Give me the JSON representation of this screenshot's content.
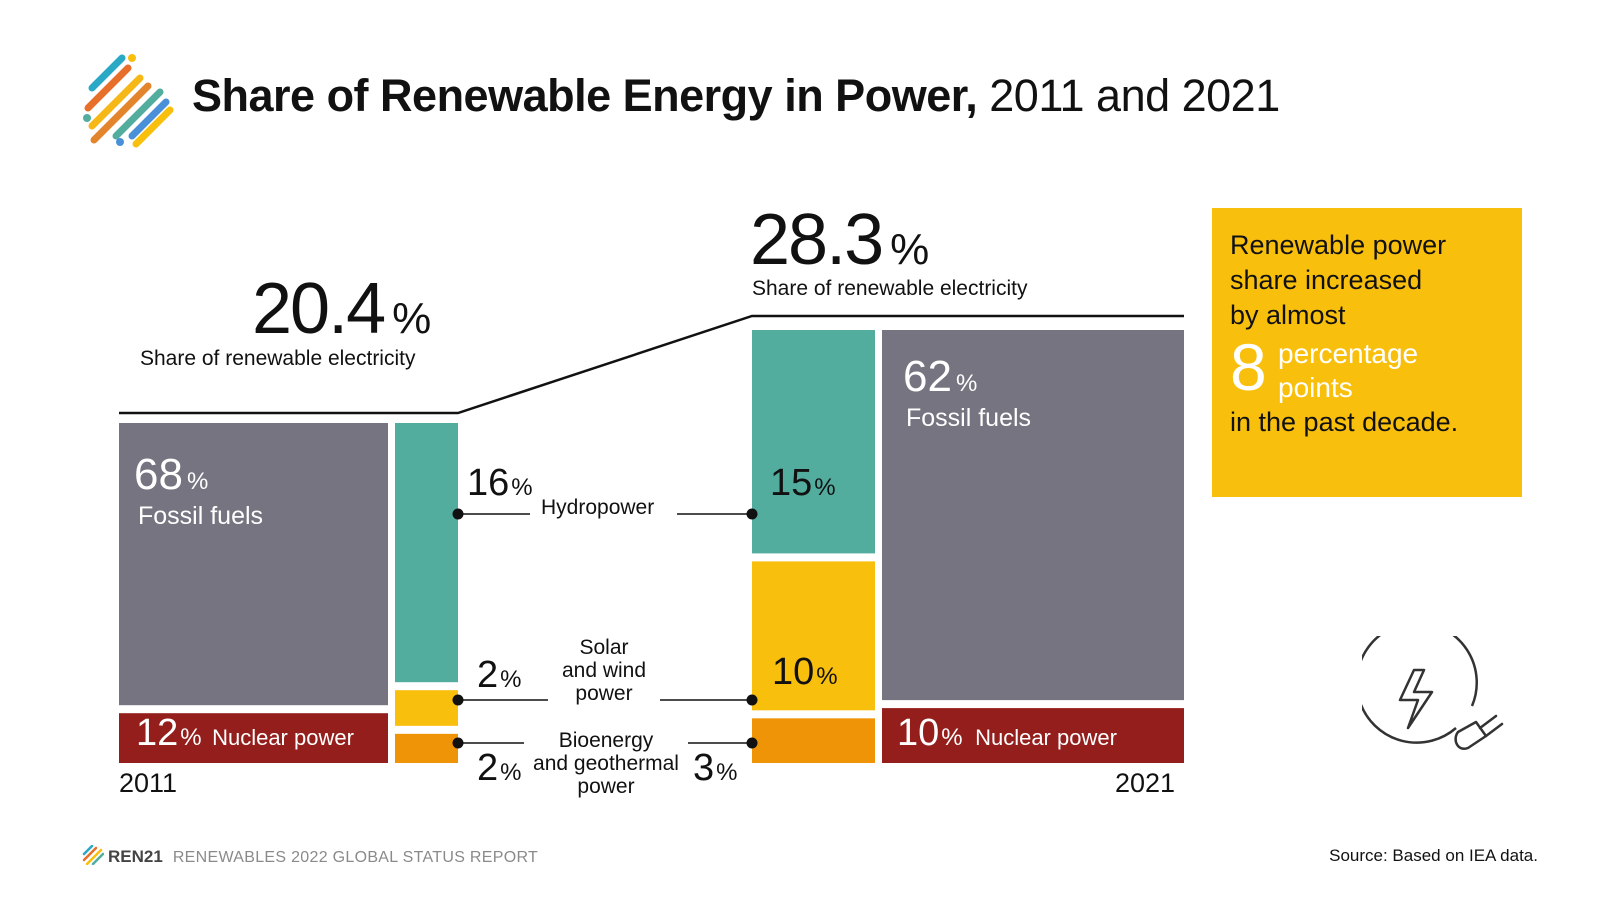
{
  "title": {
    "bold": "Share of Renewable Energy in Power,",
    "regular": "2011 and 2021"
  },
  "colors": {
    "fossil": "#767480",
    "nuclear": "#931e1b",
    "hydro": "#52ad9f",
    "solar": "#f9bf0d",
    "bio": "#ef9307",
    "callout": "#f9bf0d",
    "line": "#111111"
  },
  "chart_data": {
    "type": "stacked-bar",
    "title": "Share of Renewable Energy in Power, 2011 and 2021",
    "years": [
      "2011",
      "2021"
    ],
    "renewable_share": [
      20.4,
      28.3
    ],
    "renewable_share_label": "Share of renewable electricity",
    "series": [
      {
        "name": "Fossil fuels",
        "values": [
          68,
          62
        ]
      },
      {
        "name": "Nuclear power",
        "values": [
          12,
          10
        ]
      },
      {
        "name": "Hydropower",
        "values": [
          16,
          15
        ]
      },
      {
        "name": "Solar and wind power",
        "values": [
          2,
          10
        ]
      },
      {
        "name": "Bioenergy and geothermal power",
        "values": [
          2,
          3
        ]
      }
    ],
    "labels": {
      "y2011": {
        "share": "20.4",
        "fossil": "68",
        "nuclear": "12",
        "nuclear_text": "Nuclear power",
        "hydro": "16",
        "solar": "2",
        "bio": "2",
        "fossil_text": "Fossil fuels"
      },
      "y2021": {
        "share": "28.3",
        "fossil": "62",
        "nuclear": "10",
        "nuclear_text": "Nuclear power",
        "hydro": "15",
        "solar": "10",
        "bio": "3",
        "fossil_text": "Fossil fuels"
      },
      "pct": "%",
      "hydro_name": "Hydropower",
      "solar_name": [
        "Solar",
        "and wind",
        "power"
      ],
      "bio_name": [
        "Bioenergy",
        "and geothermal",
        "power"
      ]
    }
  },
  "callout": {
    "line1": "Renewable power",
    "line2": "share increased",
    "line3": "by almost",
    "number": "8",
    "unit1": "percentage",
    "unit2": "points",
    "line4": "in the past decade."
  },
  "icons": {
    "logo": "ren21-stripes-logo",
    "plug": "power-plug-icon"
  },
  "footer": {
    "brand": "REN21",
    "report": "RENEWABLES 2022 GLOBAL STATUS REPORT"
  },
  "source": "Source: Based on IEA data."
}
